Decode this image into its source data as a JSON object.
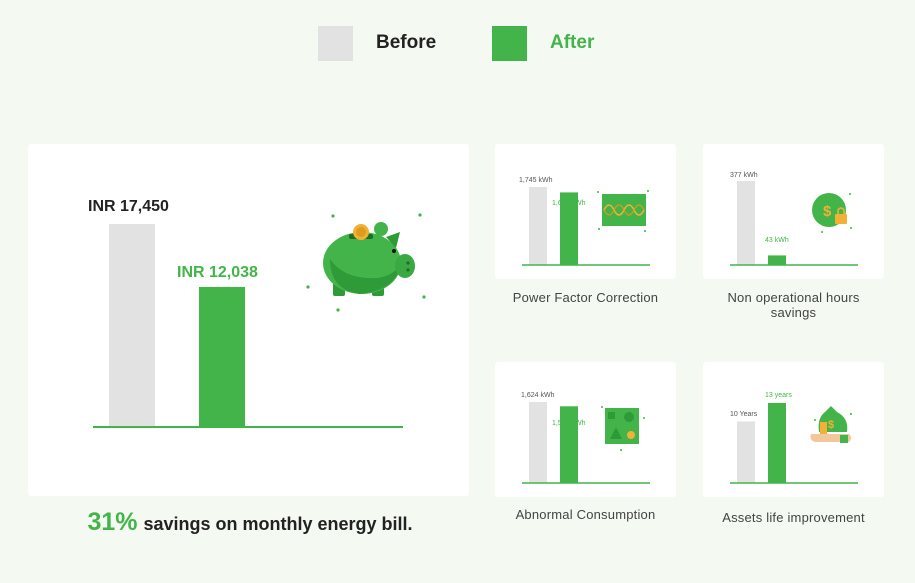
{
  "legend": {
    "before_label": "Before",
    "after_label": "After",
    "before_color": "#e2e2e2",
    "after_color": "#43b44a"
  },
  "main_chart": {
    "before_label": "INR 17,450",
    "after_label": "INR 12,038",
    "icon": "piggy-bank-icon"
  },
  "savings": {
    "percent": "31%",
    "text": "savings on monthly energy bill."
  },
  "chart_data": [
    {
      "type": "bar",
      "title": "",
      "categories": [
        "Before",
        "After"
      ],
      "values": [
        17450,
        12038
      ],
      "unit": "INR",
      "data_labels": [
        "INR 17,450",
        "INR 12,038"
      ],
      "ylim": [
        0,
        17450
      ],
      "grid": false
    },
    {
      "type": "bar",
      "title": "Power Factor Correction",
      "categories": [
        "Before",
        "After"
      ],
      "values": [
        1745,
        1624
      ],
      "unit": "kWh",
      "data_labels": [
        "1,745 kWh",
        "1,624 kWh"
      ],
      "ylim": [
        0,
        1745
      ],
      "icon": "waveform-monitor-icon"
    },
    {
      "type": "bar",
      "title": "Non operational hours savings",
      "categories": [
        "Before",
        "After"
      ],
      "values": [
        377,
        43
      ],
      "unit": "kWh",
      "data_labels": [
        "377 kWh",
        "43 kWh"
      ],
      "ylim": [
        0,
        377
      ],
      "icon": "dollar-lock-icon"
    },
    {
      "type": "bar",
      "title": "Abnormal Consumption",
      "categories": [
        "Before",
        "After"
      ],
      "values": [
        1624,
        1538
      ],
      "unit": "kWh",
      "data_labels": [
        "1,624 kWh",
        "1,538 kWh"
      ],
      "ylim": [
        0,
        1624
      ],
      "icon": "shapes-board-icon"
    },
    {
      "type": "bar",
      "title": "Assets life improvement",
      "categories": [
        "Before",
        "After"
      ],
      "values": [
        10,
        13
      ],
      "unit": "years",
      "data_labels": [
        "10 Years",
        "13 years"
      ],
      "ylim": [
        0,
        13
      ],
      "icon": "money-bag-hand-icon"
    }
  ]
}
